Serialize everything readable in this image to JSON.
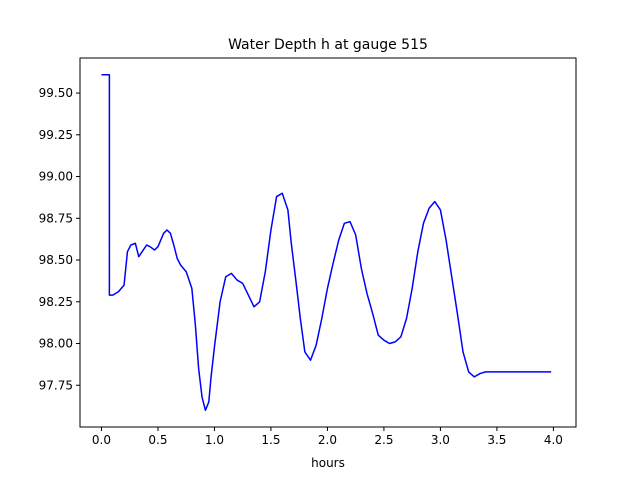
{
  "chart_data": {
    "type": "line",
    "title": "Water Depth h at gauge 515",
    "xlabel": "hours",
    "ylabel": "",
    "xlim": [
      -0.19,
      4.2
    ],
    "ylim": [
      97.5,
      99.71
    ],
    "x_ticks": [
      0.0,
      0.5,
      1.0,
      1.5,
      2.0,
      2.5,
      3.0,
      3.5,
      4.0
    ],
    "x_tick_labels": [
      "0.0",
      "0.5",
      "1.0",
      "1.5",
      "2.0",
      "2.5",
      "3.0",
      "3.5",
      "4.0"
    ],
    "y_ticks": [
      97.75,
      98.0,
      98.25,
      98.5,
      98.75,
      99.0,
      99.25,
      99.5
    ],
    "y_tick_labels": [
      "97.75",
      "98.00",
      "98.25",
      "98.50",
      "98.75",
      "99.00",
      "99.25",
      "99.50"
    ],
    "grid": false,
    "series": [
      {
        "color": "#0000ff",
        "x": [
          0.0,
          0.03,
          0.06,
          0.07,
          0.07,
          0.1,
          0.15,
          0.2,
          0.23,
          0.26,
          0.3,
          0.33,
          0.36,
          0.4,
          0.43,
          0.47,
          0.5,
          0.55,
          0.58,
          0.61,
          0.64,
          0.67,
          0.7,
          0.75,
          0.8,
          0.83,
          0.86,
          0.89,
          0.92,
          0.95,
          0.97,
          1.0,
          1.05,
          1.1,
          1.15,
          1.2,
          1.25,
          1.3,
          1.35,
          1.4,
          1.45,
          1.5,
          1.55,
          1.6,
          1.65,
          1.68,
          1.72,
          1.76,
          1.8,
          1.85,
          1.9,
          1.95,
          2.0,
          2.05,
          2.1,
          2.15,
          2.2,
          2.25,
          2.3,
          2.35,
          2.4,
          2.45,
          2.5,
          2.55,
          2.6,
          2.65,
          2.7,
          2.75,
          2.8,
          2.85,
          2.9,
          2.95,
          3.0,
          3.05,
          3.1,
          3.15,
          3.2,
          3.25,
          3.3,
          3.35,
          3.4,
          3.45,
          3.5,
          3.55,
          3.6,
          3.65,
          3.7,
          3.75,
          3.8,
          3.85,
          3.9,
          3.95,
          3.98
        ],
        "y": [
          99.61,
          99.61,
          99.61,
          99.61,
          98.29,
          98.29,
          98.31,
          98.35,
          98.55,
          98.59,
          98.6,
          98.52,
          98.55,
          98.59,
          98.58,
          98.56,
          98.58,
          98.66,
          98.68,
          98.66,
          98.59,
          98.51,
          98.47,
          98.43,
          98.33,
          98.12,
          97.85,
          97.68,
          97.6,
          97.65,
          97.8,
          97.98,
          98.25,
          98.4,
          98.42,
          98.38,
          98.36,
          98.29,
          98.22,
          98.25,
          98.43,
          98.68,
          98.88,
          98.9,
          98.8,
          98.6,
          98.38,
          98.15,
          97.95,
          97.9,
          97.99,
          98.15,
          98.33,
          98.48,
          98.62,
          98.72,
          98.73,
          98.65,
          98.45,
          98.3,
          98.18,
          98.05,
          98.02,
          98.0,
          98.01,
          98.04,
          98.15,
          98.33,
          98.55,
          98.72,
          98.81,
          98.85,
          98.8,
          98.62,
          98.4,
          98.18,
          97.95,
          97.83,
          97.8,
          97.82,
          97.83,
          97.83,
          97.83,
          97.83,
          97.83,
          97.83,
          97.83,
          97.83,
          97.83,
          97.83,
          97.83,
          97.83,
          97.83
        ]
      }
    ]
  }
}
